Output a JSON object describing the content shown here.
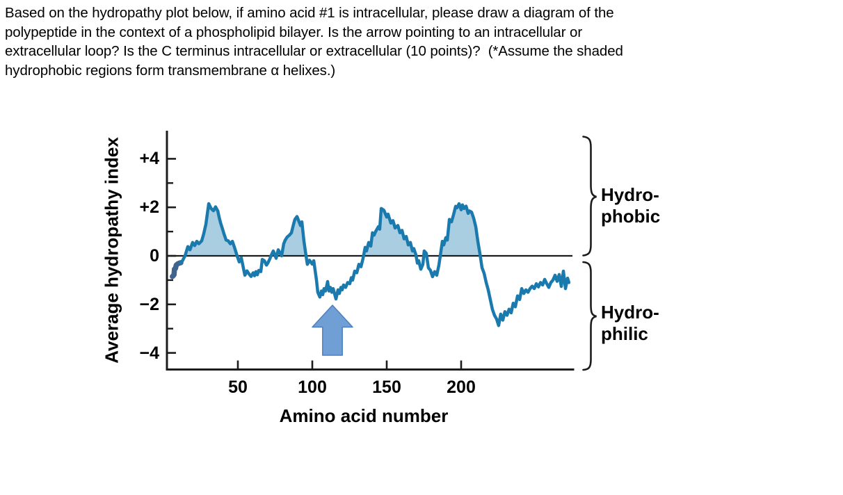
{
  "question": {
    "lines": [
      "Based on the hydropathy plot below, if amino acid #1 is intracellular, please draw a diagram of the",
      "polypeptide in the context of a phospholipid bilayer. Is the arrow pointing to an intracellular or",
      "extracellular loop? Is the C terminus intracellular or extracellular (10 points)?  (*Assume the shaded",
      "hydrophobic regions form transmembrane α helixes.)"
    ]
  },
  "chart_data": {
    "type": "line",
    "xlabel": "Amino acid number",
    "ylabel": "Average hydropathy index",
    "xlim": [
      0,
      280
    ],
    "ylim": [
      -4.7,
      5.2
    ],
    "grid": false,
    "zero_line": true,
    "x_ticks": [
      {
        "label": "50",
        "value": 50
      },
      {
        "label": "100",
        "value": 100
      },
      {
        "label": "150",
        "value": 150
      },
      {
        "label": "200",
        "value": 200
      }
    ],
    "y_ticks": [
      {
        "label": "+4",
        "value": 4
      },
      {
        "label": "+2",
        "value": 2
      },
      {
        "label": "0",
        "value": 0
      },
      {
        "label": "−2",
        "value": -2
      },
      {
        "label": "−4",
        "value": -4
      }
    ],
    "y_minor_tick_values": [
      3,
      1,
      -1,
      -3
    ],
    "series": [
      {
        "name": "N-terminus start segment (amino acid #1 end)",
        "color": "#41638f",
        "line_width": 7.5,
        "points": [
          [
            6,
            -0.85
          ],
          [
            6.6,
            -0.82
          ],
          [
            7.1,
            -0.78
          ],
          [
            7.4,
            -0.55
          ],
          [
            8.1,
            -0.52
          ],
          [
            8.6,
            -0.38
          ],
          [
            9.6,
            -0.33
          ],
          [
            10.6,
            -0.3
          ],
          [
            11.7,
            -0.28
          ]
        ]
      },
      {
        "name": "Average hydropathy index",
        "color": "#1b7aad",
        "line_width": 4.5,
        "fill_above_zero": "#a9cee1",
        "points": [
          [
            11.7,
            -0.28
          ],
          [
            12.6,
            -0.22
          ],
          [
            14.5,
            0
          ],
          [
            16.4,
            0.38
          ],
          [
            17.8,
            0.25
          ],
          [
            19.6,
            0.55
          ],
          [
            21,
            0.42
          ],
          [
            22.4,
            0.6
          ],
          [
            23.8,
            0.5
          ],
          [
            25.7,
            0.62
          ],
          [
            27,
            0.9
          ],
          [
            28.5,
            1.3
          ],
          [
            30.4,
            2.15
          ],
          [
            32,
            1.95
          ],
          [
            33.6,
            1.86
          ],
          [
            35,
            2.02
          ],
          [
            36.5,
            1.85
          ],
          [
            37.4,
            1.6
          ],
          [
            38.3,
            1.37
          ],
          [
            39.7,
            1.1
          ],
          [
            40.7,
            0.9
          ],
          [
            42.1,
            0.65
          ],
          [
            43.5,
            0.62
          ],
          [
            44.9,
            0.5
          ],
          [
            46.3,
            0.6
          ],
          [
            47.7,
            0.35
          ],
          [
            49.5,
            0
          ],
          [
            50.9,
            -0.25
          ],
          [
            52.3,
            -0.08
          ],
          [
            53.7,
            -0.5
          ],
          [
            54.7,
            -0.8
          ],
          [
            56.1,
            -0.62
          ],
          [
            57.5,
            -0.75
          ],
          [
            58.9,
            -0.85
          ],
          [
            60.3,
            -0.7
          ],
          [
            61.2,
            -0.82
          ],
          [
            62.1,
            -0.65
          ],
          [
            63.1,
            -0.78
          ],
          [
            64,
            -0.6
          ],
          [
            65.4,
            -0.65
          ],
          [
            66.4,
            -0.15
          ],
          [
            67.8,
            -0.2
          ],
          [
            69.2,
            -0.38
          ],
          [
            70.1,
            -0.3
          ],
          [
            71.5,
            -0.12
          ],
          [
            72.4,
            0.02
          ],
          [
            73.8,
            0.2
          ],
          [
            74.8,
            0.05
          ],
          [
            75.7,
            -0.1
          ],
          [
            77.1,
            0.25
          ],
          [
            78.5,
            0.1
          ],
          [
            79.4,
            0
          ],
          [
            80.8,
            0.5
          ],
          [
            81.8,
            0.65
          ],
          [
            83.2,
            0.78
          ],
          [
            84.6,
            0.85
          ],
          [
            86,
            0.95
          ],
          [
            87.4,
            1.3
          ],
          [
            88.3,
            1.5
          ],
          [
            89.7,
            1.62
          ],
          [
            91.1,
            1.4
          ],
          [
            92.1,
            1.25
          ],
          [
            93,
            1.4
          ],
          [
            94.4,
            0.6
          ],
          [
            95.8,
            0
          ],
          [
            96.7,
            -0.35
          ],
          [
            98.1,
            -0.18
          ],
          [
            100,
            -0.34
          ],
          [
            101,
            -0.2
          ],
          [
            102.8,
            -1
          ],
          [
            103.7,
            -1.5
          ],
          [
            105.1,
            -1.7
          ],
          [
            106.1,
            -1.45
          ],
          [
            107,
            -1.6
          ],
          [
            107.9,
            -1.35
          ],
          [
            108.9,
            -1.45
          ],
          [
            109.8,
            -1.2
          ],
          [
            110.3,
            -1.06
          ],
          [
            111.2,
            -1.45
          ],
          [
            112.1,
            -1.3
          ],
          [
            113.1,
            -1.5
          ],
          [
            114,
            -1.35
          ],
          [
            115.9,
            -1.78
          ],
          [
            117.3,
            -1.4
          ],
          [
            118.2,
            -1.55
          ],
          [
            119.2,
            -1.3
          ],
          [
            120.1,
            -1.4
          ],
          [
            121,
            -1.2
          ],
          [
            122.4,
            -1.3
          ],
          [
            123.8,
            -1.1
          ],
          [
            125.2,
            -1.15
          ],
          [
            126.2,
            -0.9
          ],
          [
            127.1,
            -1
          ],
          [
            128.5,
            -0.63
          ],
          [
            129.9,
            -0.7
          ],
          [
            131.3,
            -0.35
          ],
          [
            132.7,
            -0.45
          ],
          [
            134.1,
            -0.1
          ],
          [
            135.5,
            0.35
          ],
          [
            136.4,
            0.2
          ],
          [
            137.9,
            0.55
          ],
          [
            139.3,
            0.4
          ],
          [
            140.4,
            0.95
          ],
          [
            141.5,
            0.85
          ],
          [
            142.5,
            1
          ],
          [
            144.4,
            1.2
          ],
          [
            145.3,
            1.1
          ],
          [
            146.3,
            1.95
          ],
          [
            148.1,
            1.88
          ],
          [
            150,
            1.6
          ],
          [
            150.9,
            1.72
          ],
          [
            152.8,
            1.35
          ],
          [
            154.2,
            1.45
          ],
          [
            155.6,
            1.15
          ],
          [
            157.5,
            1.25
          ],
          [
            158.9,
            0.95
          ],
          [
            160.3,
            1.05
          ],
          [
            161.7,
            0.7
          ],
          [
            163.1,
            0.8
          ],
          [
            164.5,
            0.45
          ],
          [
            165.9,
            0.55
          ],
          [
            167.3,
            0.2
          ],
          [
            168.2,
            0.3
          ],
          [
            169.6,
            0.05
          ],
          [
            170.6,
            -0.3
          ],
          [
            171.5,
            -0.2
          ],
          [
            172.9,
            -0.55
          ],
          [
            174.3,
            -0.35
          ],
          [
            175.2,
            0.2
          ],
          [
            176.6,
            0.1
          ],
          [
            178,
            -0.49
          ],
          [
            179.4,
            -0.6
          ],
          [
            180.8,
            -0.86
          ],
          [
            182.2,
            -0.65
          ],
          [
            183.6,
            -0.8
          ],
          [
            185,
            -0.4
          ],
          [
            186,
            0
          ],
          [
            187.4,
            0.6
          ],
          [
            188.3,
            0.45
          ],
          [
            189.7,
            0.75
          ],
          [
            190.7,
            0.65
          ],
          [
            192.1,
            1.5
          ],
          [
            193.5,
            1.4
          ],
          [
            194.9,
            1.7
          ],
          [
            196.3,
            2.04
          ],
          [
            197.2,
            1.98
          ],
          [
            198.6,
            2.15
          ],
          [
            200,
            1.9
          ],
          [
            200.9,
            2.1
          ],
          [
            201.9,
            1.95
          ],
          [
            203.3,
            2.05
          ],
          [
            204.7,
            1.75
          ],
          [
            205.6,
            1.85
          ],
          [
            207,
            1.8
          ],
          [
            208.4,
            1.55
          ],
          [
            209.8,
            1.2
          ],
          [
            211.2,
            0.6
          ],
          [
            212.6,
            0.09
          ],
          [
            214,
            -0.49
          ],
          [
            215.4,
            -0.72
          ],
          [
            216.8,
            -1.1
          ],
          [
            218.2,
            -1.4
          ],
          [
            219.6,
            -1.8
          ],
          [
            221,
            -2.2
          ],
          [
            222.4,
            -2.45
          ],
          [
            223.8,
            -2.6
          ],
          [
            225.2,
            -2.87
          ],
          [
            226.6,
            -2.4
          ],
          [
            228,
            -2.65
          ],
          [
            229.4,
            -2.3
          ],
          [
            230.8,
            -2.45
          ],
          [
            232.2,
            -2.2
          ],
          [
            233.6,
            -2.35
          ],
          [
            235,
            -1.95
          ],
          [
            236.4,
            -2.1
          ],
          [
            237.9,
            -1.65
          ],
          [
            239.3,
            -1.8
          ],
          [
            240.7,
            -1.35
          ],
          [
            242.1,
            -1.55
          ],
          [
            243.5,
            -1.4
          ],
          [
            244.9,
            -1.5
          ],
          [
            246.3,
            -1.35
          ],
          [
            247.7,
            -1.25
          ],
          [
            249.1,
            -1.35
          ],
          [
            250.5,
            -1.15
          ],
          [
            251.9,
            -1.28
          ],
          [
            253.3,
            -1.1
          ],
          [
            254.7,
            -1.2
          ],
          [
            256.1,
            -0.97
          ],
          [
            257.5,
            -1.15
          ],
          [
            258.9,
            -1.3
          ],
          [
            260.3,
            -1.1
          ],
          [
            261.7,
            -1
          ],
          [
            263.1,
            -0.8
          ],
          [
            264.5,
            -1.05
          ],
          [
            265.9,
            -0.77
          ],
          [
            267.3,
            -1.26
          ],
          [
            268.7,
            -0.63
          ],
          [
            270.1,
            -1.35
          ],
          [
            271.5,
            -0.92
          ],
          [
            272.4,
            -1.1
          ]
        ]
      }
    ],
    "annotations": {
      "hydrophobic_label": [
        "Hydro-",
        "phobic"
      ],
      "hydrophilic_label": [
        "Hydro-",
        "philic"
      ],
      "arrow": {
        "points_to_amino_acid": 114,
        "direction": "up",
        "fill": "#6f9fd4",
        "stroke": "#4d7fc0"
      }
    },
    "colors": {
      "axis": "#1c1c1c",
      "text": "#000000"
    }
  }
}
